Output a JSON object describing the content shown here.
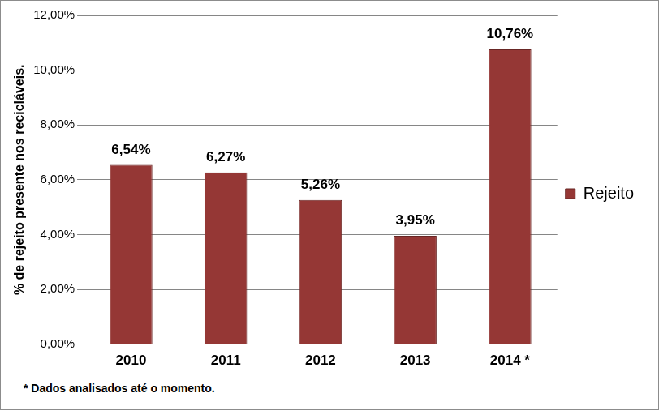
{
  "chart_data": {
    "type": "bar",
    "categories": [
      "2010",
      "2011",
      "2012",
      "2013",
      "2014 *"
    ],
    "series": [
      {
        "name": "Rejeito",
        "color": "#953735",
        "values": [
          6.54,
          6.27,
          5.26,
          3.95,
          10.76
        ],
        "value_labels": [
          "6,54%",
          "6,27%",
          "5,26%",
          "3,95%",
          "10,76%"
        ]
      }
    ],
    "y_label": "% de rejeito presente nos recicláveis.",
    "annotation": "* Dados analisados até o momento.",
    "ylim": [
      0,
      12
    ],
    "yticks": [
      {
        "value": 0,
        "label": "0,00%"
      },
      {
        "value": 2,
        "label": "2,00%"
      },
      {
        "value": 4,
        "label": "4,00%"
      },
      {
        "value": 6,
        "label": "6,00%"
      },
      {
        "value": 8,
        "label": "8,00%"
      },
      {
        "value": 10,
        "label": "10,00%"
      },
      {
        "value": 12,
        "label": "12,00%"
      }
    ],
    "grid": true,
    "legend": "right",
    "data_labels": true
  }
}
